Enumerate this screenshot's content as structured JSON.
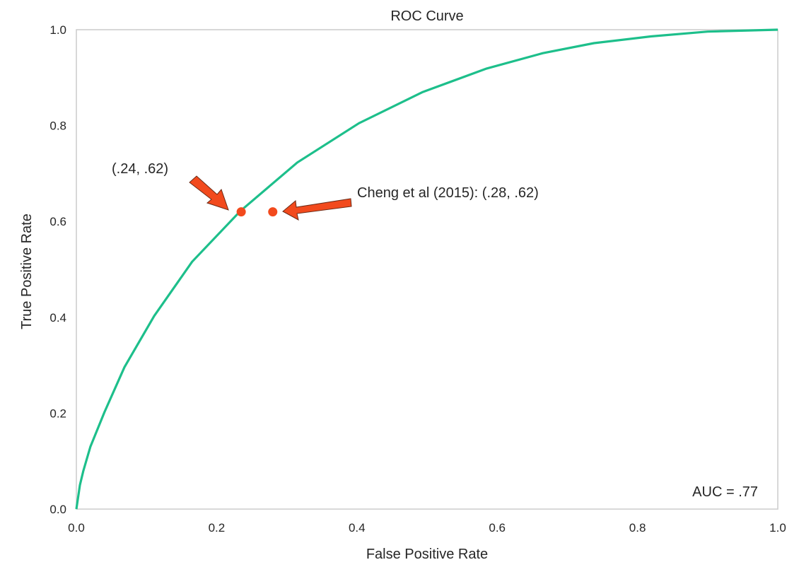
{
  "chart_data": {
    "type": "line",
    "title": "ROC Curve",
    "xlabel": "False Positive Rate",
    "ylabel": "True Positive Rate",
    "xlim": [
      0,
      1
    ],
    "ylim": [
      0,
      1
    ],
    "grid": false,
    "xticks": [
      "0.0",
      "0.2",
      "0.4",
      "0.6",
      "0.8",
      "1.0"
    ],
    "yticks": [
      "0.0",
      "0.2",
      "0.4",
      "0.6",
      "0.8",
      "1.0"
    ],
    "series": [
      {
        "name": "ROC",
        "color": "#1dbf8b",
        "x": [
          0,
          0.005,
          0.01,
          0.02,
          0.04,
          0.0685,
          0.111,
          0.165,
          0.234,
          0.315,
          0.403,
          0.494,
          0.585,
          0.665,
          0.738,
          0.819,
          0.9,
          1.0
        ],
        "y": [
          0,
          0.05,
          0.08,
          0.13,
          0.202,
          0.296,
          0.403,
          0.516,
          0.622,
          0.723,
          0.805,
          0.87,
          0.919,
          0.951,
          0.972,
          0.986,
          0.996,
          1.0
        ]
      }
    ],
    "points": [
      {
        "x": 0.235,
        "y": 0.62,
        "color": "#f24a1d",
        "label": "(.24, .62)"
      },
      {
        "x": 0.28,
        "y": 0.62,
        "color": "#f24a1d",
        "label": "Cheng et al (2015): (.28, .62)"
      }
    ],
    "annotations": {
      "auc": "AUC = .77"
    }
  }
}
